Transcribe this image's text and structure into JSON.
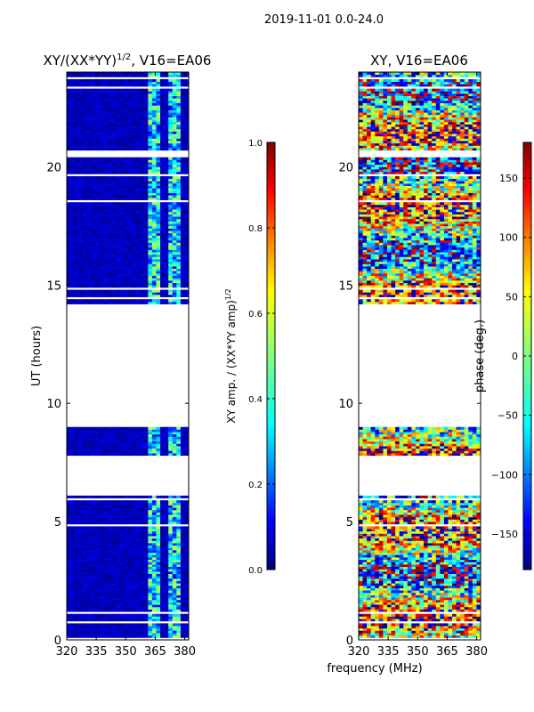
{
  "figure": {
    "suptitle": "2019-11-01 0.0-24.0",
    "shared_xlabel": "frequency (MHz)"
  },
  "chart_data": [
    {
      "type": "heatmap",
      "title": "XY/(XX*YY)",
      "title_superscript": "1/2",
      "title_suffix": ", V16=EA06",
      "xlabel": "",
      "ylabel": "UT (hours)",
      "xlim": [
        320,
        382
      ],
      "ylim": [
        0,
        24
      ],
      "xticks": [
        320,
        335,
        350,
        365,
        380
      ],
      "yticks": [
        0,
        5,
        10,
        15,
        20
      ],
      "colormap": "jet",
      "colorbar": {
        "label": "XY amp. / (XX*YY amp)",
        "label_superscript": "1/2",
        "range": [
          0.0,
          1.0
        ],
        "ticks": [
          0.0,
          0.2,
          0.4,
          0.6,
          0.8,
          1.0
        ],
        "tick_labels": [
          "0.0",
          "0.2",
          "0.4",
          "0.6",
          "0.8",
          "1.0"
        ]
      },
      "data_time_ranges_hours": [
        [
          0.0,
          6.1
        ],
        [
          7.8,
          9.0
        ],
        [
          14.2,
          20.4
        ],
        [
          20.7,
          24.0
        ]
      ],
      "description_values": "mostly low amplitude (~0.05) with elevated bands (~0.3-0.55) near 362-378 MHz"
    },
    {
      "type": "heatmap",
      "title": "XY, V16=EA06",
      "xlabel": "frequency (MHz)",
      "ylabel": "",
      "xlim": [
        320,
        382
      ],
      "ylim": [
        0,
        24
      ],
      "xticks": [
        320,
        335,
        350,
        365,
        380
      ],
      "yticks": [
        0,
        5,
        10,
        15,
        20
      ],
      "colormap": "jet",
      "colorbar": {
        "label": "phase (deg.)",
        "range": [
          -180,
          180
        ],
        "ticks": [
          -150,
          -100,
          -50,
          0,
          50,
          100,
          150
        ],
        "tick_labels": [
          "−150",
          "−100",
          "−50",
          "0",
          "50",
          "100",
          "150"
        ]
      },
      "data_time_ranges_hours": [
        [
          0.0,
          6.1
        ],
        [
          7.8,
          9.0
        ],
        [
          14.2,
          20.4
        ],
        [
          20.7,
          24.0
        ]
      ],
      "description_values": "phase varies widely across full -180 to 180 deg range"
    }
  ]
}
